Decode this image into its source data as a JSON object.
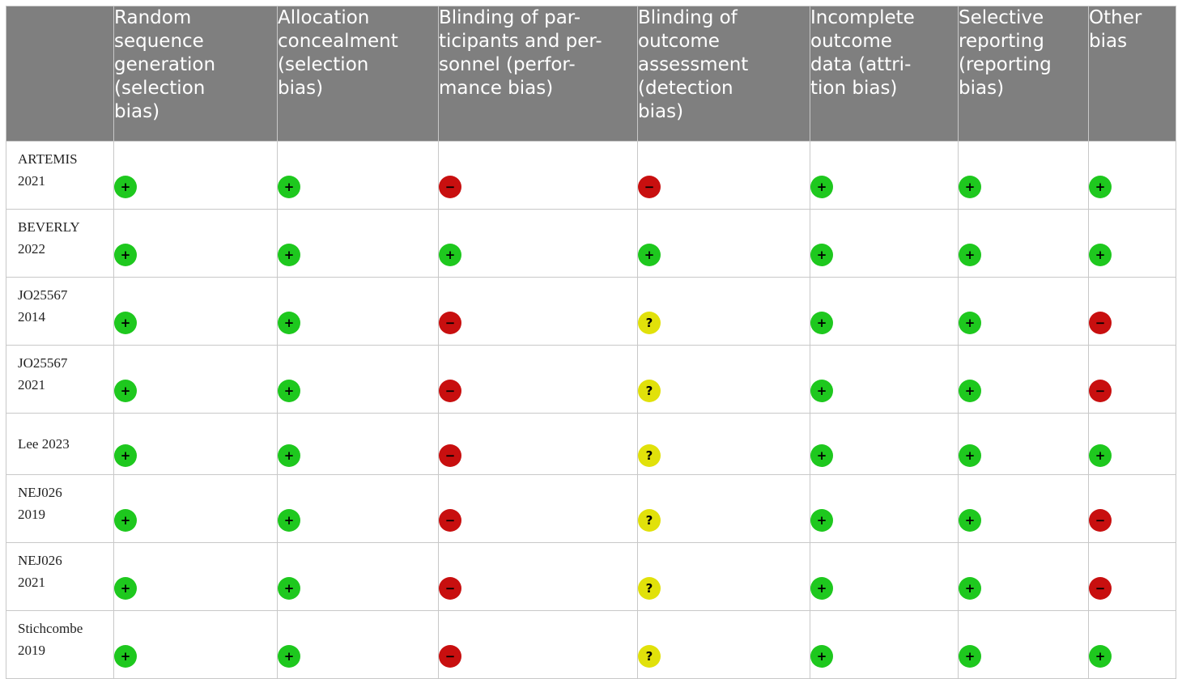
{
  "header": [
    "",
    "Random sequence generation (selection bias)",
    "Allocation concealment (selection bias)",
    "Blinding of par-ticipants and per-sonnel (perfor-mance bias)",
    "Blinding of outcome assessment (detection bias)",
    "Incomplete outcome data (attri-tion bias)",
    "Selective reporting (reporting bias)",
    "Other bias"
  ],
  "header_lines": [
    [],
    [
      "Random",
      "sequence",
      "generation",
      "(selection",
      "bias)"
    ],
    [
      "Allocation",
      "concealment",
      "(selection",
      "bias)"
    ],
    [
      "Blinding of par-",
      "ticipants and per-",
      "sonnel (perfor-",
      "mance bias)"
    ],
    [
      "Blinding of",
      "outcome",
      "assessment",
      "(detection",
      "bias)"
    ],
    [
      "Incomplete",
      "outcome",
      "data (attri-",
      "tion bias)"
    ],
    [
      "Selective",
      "reporting",
      "(reporting",
      "bias)"
    ],
    [
      "Other",
      "bias"
    ]
  ],
  "symbols": {
    "low": "+",
    "high": "−",
    "unclear": "?"
  },
  "colors": {
    "low": "#1ec81e",
    "high": "#c80f0f",
    "unclear": "#e1e10a",
    "header_bg": "#7f7f7f"
  },
  "rows": [
    {
      "study": [
        "ARTEMIS",
        "2021"
      ],
      "ratings": [
        "low",
        "low",
        "high",
        "high",
        "low",
        "low",
        "low"
      ]
    },
    {
      "study": [
        "BEVERLY",
        "2022"
      ],
      "ratings": [
        "low",
        "low",
        "low",
        "low",
        "low",
        "low",
        "low"
      ]
    },
    {
      "study": [
        "JO25567",
        "2014"
      ],
      "ratings": [
        "low",
        "low",
        "high",
        "unclear",
        "low",
        "low",
        "high"
      ]
    },
    {
      "study": [
        "JO25567",
        "2021"
      ],
      "ratings": [
        "low",
        "low",
        "high",
        "unclear",
        "low",
        "low",
        "high"
      ]
    },
    {
      "study": [
        "Lee 2023"
      ],
      "ratings": [
        "low",
        "low",
        "high",
        "unclear",
        "low",
        "low",
        "low"
      ]
    },
    {
      "study": [
        "NEJ026",
        "2019"
      ],
      "ratings": [
        "low",
        "low",
        "high",
        "unclear",
        "low",
        "low",
        "high"
      ]
    },
    {
      "study": [
        "NEJ026",
        "2021"
      ],
      "ratings": [
        "low",
        "low",
        "high",
        "unclear",
        "low",
        "low",
        "high"
      ]
    },
    {
      "study": [
        "Stichcombe",
        "2019"
      ],
      "ratings": [
        "low",
        "low",
        "high",
        "unclear",
        "low",
        "low",
        "low"
      ]
    }
  ]
}
